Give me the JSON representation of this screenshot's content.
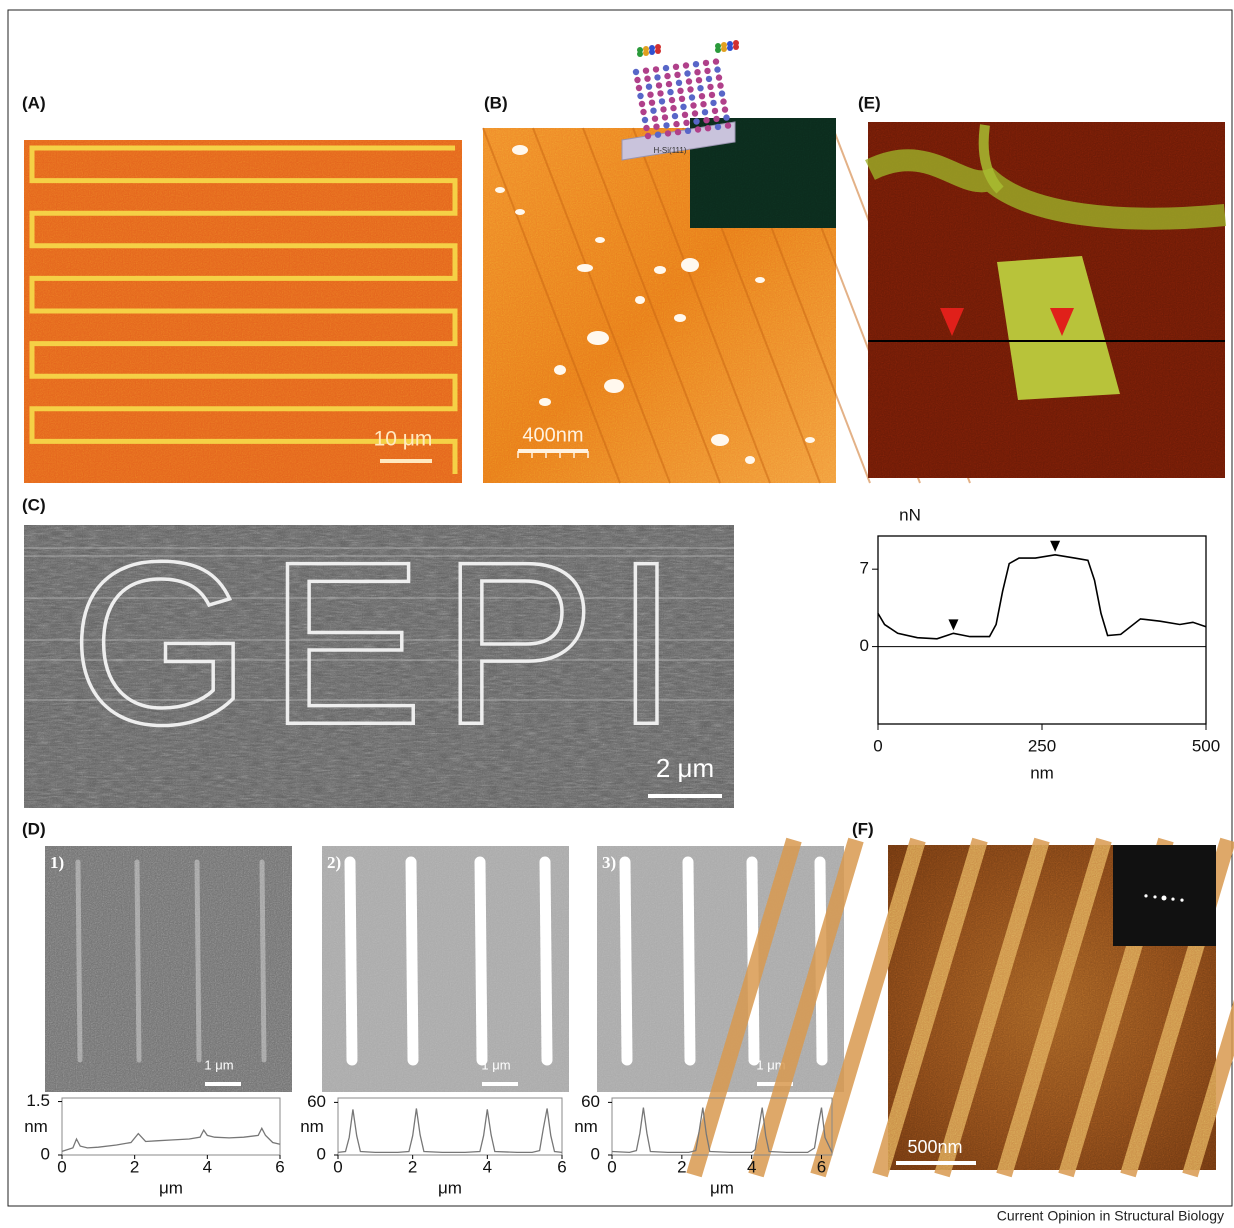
{
  "labels": {
    "a": "(A)",
    "b": "(B)",
    "c": "(C)",
    "d": "(D)",
    "e": "(E)",
    "f": "(F)"
  },
  "scale_bars": {
    "a": "10 μm",
    "b": "400nm",
    "c": "2 μm",
    "d1": "1 μm",
    "d2": "1 μm",
    "d3": "1 μm",
    "f": "500nm"
  },
  "insets": {
    "b": "H-Si(111)",
    "c": "GEPI",
    "d1": "1)",
    "d2": "2)",
    "d3": "3)"
  },
  "footer": "Current Opinion in Structural Biology",
  "chart_data": [
    {
      "type": "line",
      "ylabel": "nN",
      "xlabel": "nm",
      "color": "#000000",
      "x": [
        0,
        10,
        30,
        60,
        90,
        115,
        140,
        170,
        180,
        190,
        200,
        215,
        240,
        270,
        300,
        320,
        330,
        340,
        350,
        370,
        400,
        430,
        460,
        480,
        500
      ],
      "values": [
        3,
        2,
        1.2,
        0.8,
        0.7,
        1.2,
        0.9,
        0.9,
        2,
        5,
        7.5,
        8,
        8,
        8.3,
        8,
        7.8,
        6,
        3,
        1,
        1.1,
        2.5,
        2.3,
        2,
        2.2,
        1.8
      ],
      "markers": {
        "x": [
          115,
          270
        ],
        "values": [
          1.2,
          8.3
        ]
      },
      "xlim": [
        0,
        500
      ],
      "ylim": [
        -7,
        10
      ],
      "xticks": [
        0,
        250,
        500
      ],
      "yticks": [
        0,
        7
      ],
      "zero_line": true
    },
    {
      "type": "line",
      "ylabel": "nm",
      "xlabel": "μm",
      "color": "#777777",
      "x": [
        0,
        0.3,
        0.4,
        0.5,
        0.7,
        1.0,
        1.5,
        1.9,
        2.1,
        2.3,
        2.6,
        3.0,
        3.5,
        3.8,
        3.9,
        4.0,
        4.2,
        4.6,
        5.0,
        5.4,
        5.5,
        5.6,
        5.8,
        6.0
      ],
      "values": [
        0.1,
        0.2,
        0.45,
        0.25,
        0.2,
        0.22,
        0.28,
        0.35,
        0.6,
        0.38,
        0.4,
        0.42,
        0.45,
        0.5,
        0.7,
        0.55,
        0.5,
        0.48,
        0.5,
        0.55,
        0.75,
        0.55,
        0.35,
        0.3
      ],
      "xlim": [
        0,
        6
      ],
      "ylim": [
        0,
        1.6
      ],
      "xticks": [
        0,
        2,
        4,
        6
      ],
      "yticks": [
        0,
        1.5
      ]
    },
    {
      "type": "line",
      "ylabel": "nm",
      "xlabel": "μm",
      "color": "#777777",
      "x": [
        0,
        0.2,
        0.3,
        0.4,
        0.5,
        0.6,
        1.0,
        1.6,
        1.9,
        2.0,
        2.1,
        2.2,
        2.3,
        2.8,
        3.4,
        3.8,
        3.9,
        4.0,
        4.1,
        4.2,
        4.8,
        5.2,
        5.4,
        5.5,
        5.6,
        5.7,
        5.8,
        6.0
      ],
      "values": [
        3,
        4,
        20,
        52,
        22,
        4,
        3,
        3,
        4,
        22,
        53,
        23,
        4,
        3,
        3,
        4,
        22,
        52,
        23,
        4,
        3,
        3,
        5,
        30,
        53,
        22,
        4,
        3
      ],
      "xlim": [
        0,
        6
      ],
      "ylim": [
        0,
        65
      ],
      "xticks": [
        0,
        2,
        4,
        6
      ],
      "yticks": [
        0,
        60
      ]
    },
    {
      "type": "line",
      "ylabel": "nm",
      "xlabel": "μm",
      "color": "#777777",
      "x": [
        0,
        0.5,
        0.7,
        0.8,
        0.9,
        1.0,
        1.1,
        1.6,
        2.2,
        2.4,
        2.5,
        2.6,
        2.7,
        2.8,
        3.4,
        4.0,
        4.1,
        4.2,
        4.3,
        4.4,
        4.5,
        5.0,
        5.6,
        5.8,
        5.9,
        6.0,
        6.1,
        6.3
      ],
      "values": [
        4,
        3,
        5,
        25,
        54,
        25,
        4,
        3,
        3,
        5,
        28,
        54,
        24,
        4,
        3,
        3,
        6,
        30,
        54,
        22,
        4,
        3,
        3,
        8,
        33,
        54,
        20,
        3
      ],
      "xlim": [
        0,
        6.3
      ],
      "ylim": [
        0,
        65
      ],
      "xticks": [
        0,
        2,
        4,
        6
      ],
      "yticks": [
        0,
        60
      ]
    }
  ]
}
